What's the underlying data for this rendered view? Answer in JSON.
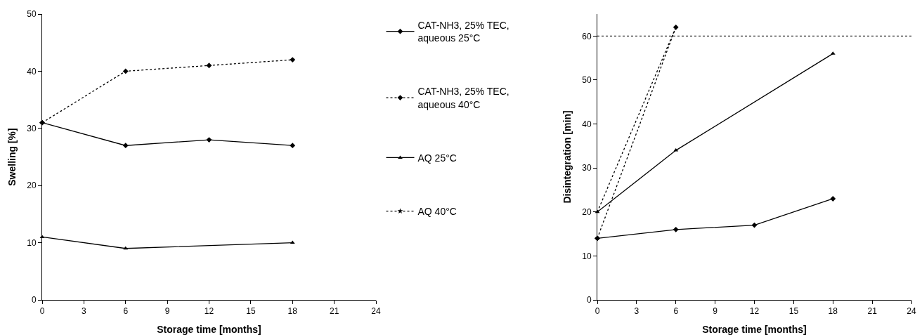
{
  "chart_data": [
    {
      "type": "line",
      "xlabel": "Storage time [months]",
      "ylabel": "Swelling [%]",
      "x": [
        0,
        6,
        12,
        18
      ],
      "xlim": [
        0,
        24
      ],
      "xticks": [
        0,
        3,
        6,
        9,
        12,
        15,
        18,
        21,
        24
      ],
      "ylim": [
        0,
        50
      ],
      "yticks": [
        0,
        10,
        20,
        30,
        40,
        50
      ],
      "grid": false,
      "legend": "right",
      "series": [
        {
          "name": "CAT-NH3, 25% TEC,\naqueous 25°C",
          "color": "#000000",
          "marker": "diamond",
          "line_style": "solid",
          "values": [
            31,
            27,
            28,
            27
          ]
        },
        {
          "name": "CAT-NH3, 25% TEC,\naqueous 40°C",
          "color": "#000000",
          "marker": "diamond",
          "line_style": "dotted",
          "values": [
            31,
            40,
            41,
            42
          ]
        },
        {
          "name": "AQ 25°C",
          "color": "#000000",
          "marker": "triangle",
          "line_style": "solid",
          "x": [
            0,
            6,
            18
          ],
          "values": [
            11,
            9,
            10
          ]
        },
        {
          "name": "AQ 40°C",
          "color": "#000000",
          "marker": "star",
          "line_style": "dotted",
          "values": [
            null,
            null,
            null,
            null
          ]
        }
      ]
    },
    {
      "type": "line",
      "xlabel": "Storage time [months]",
      "ylabel": "Disintegration [min]",
      "x": [
        0,
        6,
        12,
        18
      ],
      "xlim": [
        0,
        24
      ],
      "xticks": [
        0,
        3,
        6,
        9,
        12,
        15,
        18,
        21,
        24
      ],
      "ylim": [
        0,
        65
      ],
      "yticks": [
        0,
        10,
        20,
        30,
        40,
        50,
        60
      ],
      "grid": false,
      "legend": false,
      "ref_lines": [
        {
          "axis": "y",
          "value": 60,
          "color": "#000000",
          "line_style": "dotted"
        }
      ],
      "series": [
        {
          "color": "#000000",
          "marker": "diamond",
          "line_style": "solid",
          "values": [
            14,
            16,
            17,
            23
          ]
        },
        {
          "color": "#000000",
          "marker": "diamond",
          "line_style": "dotted",
          "x": [
            0,
            6
          ],
          "values": [
            14,
            62
          ]
        },
        {
          "color": "#000000",
          "marker": "triangle",
          "line_style": "solid",
          "x": [
            0,
            6,
            18
          ],
          "values": [
            20,
            34,
            56
          ]
        },
        {
          "color": "#000000",
          "marker": "none",
          "line_style": "dotted",
          "x": [
            0,
            6
          ],
          "values": [
            20,
            62
          ]
        }
      ]
    }
  ]
}
